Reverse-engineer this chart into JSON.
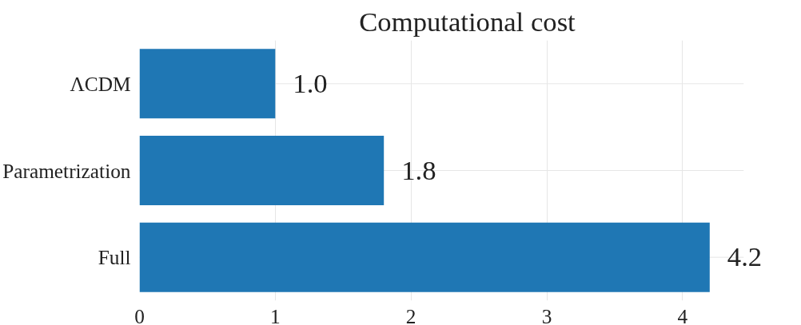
{
  "chart_data": {
    "type": "bar",
    "orientation": "horizontal",
    "title": "Computational cost",
    "categories": [
      "ΛCDM",
      "Parametrization",
      "Full"
    ],
    "values": [
      1.0,
      1.8,
      4.2
    ],
    "color": "#1f77b4",
    "value_labels": [
      "1.0",
      "1.8",
      "4.2"
    ],
    "xlim": [
      0,
      4.45
    ],
    "xticks": [
      0,
      1,
      2,
      3,
      4
    ],
    "grid": true
  }
}
